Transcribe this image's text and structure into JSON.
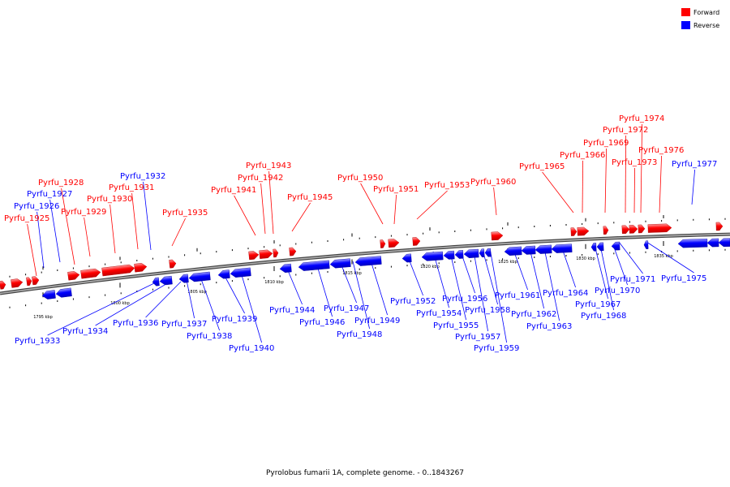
{
  "caption": "Pyrolobus fumarii 1A, complete genome. - 0..1843267",
  "colors": {
    "forward": "#ff0000",
    "reverse": "#0000ff",
    "backbone": "#888888"
  },
  "legend": [
    {
      "label": "Forward",
      "color": "#ff0000"
    },
    {
      "label": "Reverse",
      "color": "#0000ff"
    }
  ],
  "scale_labels": [
    "1795 kbp",
    "1800 kbp",
    "1805 kbp",
    "1810 kbp",
    "1815 kbp",
    "1820 kbp",
    "1825 kbp",
    "1830 kbp",
    "1835 kbp"
  ],
  "genes": [
    {
      "name": "Pyrfu_1925",
      "strand": "forward"
    },
    {
      "name": "Pyrfu_1926",
      "strand": "reverse"
    },
    {
      "name": "Pyrfu_1927",
      "strand": "reverse"
    },
    {
      "name": "Pyrfu_1928",
      "strand": "forward"
    },
    {
      "name": "Pyrfu_1929",
      "strand": "forward"
    },
    {
      "name": "Pyrfu_1930",
      "strand": "forward"
    },
    {
      "name": "Pyrfu_1931",
      "strand": "forward"
    },
    {
      "name": "Pyrfu_1932",
      "strand": "reverse"
    },
    {
      "name": "Pyrfu_1933",
      "strand": "reverse"
    },
    {
      "name": "Pyrfu_1934",
      "strand": "reverse"
    },
    {
      "name": "Pyrfu_1935",
      "strand": "forward"
    },
    {
      "name": "Pyrfu_1936",
      "strand": "reverse"
    },
    {
      "name": "Pyrfu_1937",
      "strand": "reverse"
    },
    {
      "name": "Pyrfu_1938",
      "strand": "reverse"
    },
    {
      "name": "Pyrfu_1939",
      "strand": "reverse"
    },
    {
      "name": "Pyrfu_1940",
      "strand": "reverse"
    },
    {
      "name": "Pyrfu_1941",
      "strand": "forward"
    },
    {
      "name": "Pyrfu_1942",
      "strand": "forward"
    },
    {
      "name": "Pyrfu_1943",
      "strand": "forward"
    },
    {
      "name": "Pyrfu_1944",
      "strand": "reverse"
    },
    {
      "name": "Pyrfu_1945",
      "strand": "forward"
    },
    {
      "name": "Pyrfu_1946",
      "strand": "reverse"
    },
    {
      "name": "Pyrfu_1947",
      "strand": "reverse"
    },
    {
      "name": "Pyrfu_1948",
      "strand": "reverse"
    },
    {
      "name": "Pyrfu_1949",
      "strand": "reverse"
    },
    {
      "name": "Pyrfu_1950",
      "strand": "forward"
    },
    {
      "name": "Pyrfu_1951",
      "strand": "forward"
    },
    {
      "name": "Pyrfu_1952",
      "strand": "reverse"
    },
    {
      "name": "Pyrfu_1953",
      "strand": "forward"
    },
    {
      "name": "Pyrfu_1954",
      "strand": "reverse"
    },
    {
      "name": "Pyrfu_1955",
      "strand": "reverse"
    },
    {
      "name": "Pyrfu_1956",
      "strand": "reverse"
    },
    {
      "name": "Pyrfu_1957",
      "strand": "reverse"
    },
    {
      "name": "Pyrfu_1958",
      "strand": "reverse"
    },
    {
      "name": "Pyrfu_1959",
      "strand": "reverse"
    },
    {
      "name": "Pyrfu_1960",
      "strand": "forward"
    },
    {
      "name": "Pyrfu_1961",
      "strand": "reverse"
    },
    {
      "name": "Pyrfu_1962",
      "strand": "reverse"
    },
    {
      "name": "Pyrfu_1963",
      "strand": "reverse"
    },
    {
      "name": "Pyrfu_1964",
      "strand": "reverse"
    },
    {
      "name": "Pyrfu_1965",
      "strand": "forward"
    },
    {
      "name": "Pyrfu_1966",
      "strand": "forward"
    },
    {
      "name": "Pyrfu_1967",
      "strand": "reverse"
    },
    {
      "name": "Pyrfu_1968",
      "strand": "reverse"
    },
    {
      "name": "Pyrfu_1969",
      "strand": "forward"
    },
    {
      "name": "Pyrfu_1970",
      "strand": "reverse"
    },
    {
      "name": "Pyrfu_1971",
      "strand": "reverse"
    },
    {
      "name": "Pyrfu_1972",
      "strand": "forward"
    },
    {
      "name": "Pyrfu_1973",
      "strand": "forward"
    },
    {
      "name": "Pyrfu_1974",
      "strand": "forward"
    },
    {
      "name": "Pyrfu_1975",
      "strand": "reverse"
    },
    {
      "name": "Pyrfu_1976",
      "strand": "forward"
    },
    {
      "name": "Pyrfu_1977",
      "strand": "reverse"
    }
  ]
}
